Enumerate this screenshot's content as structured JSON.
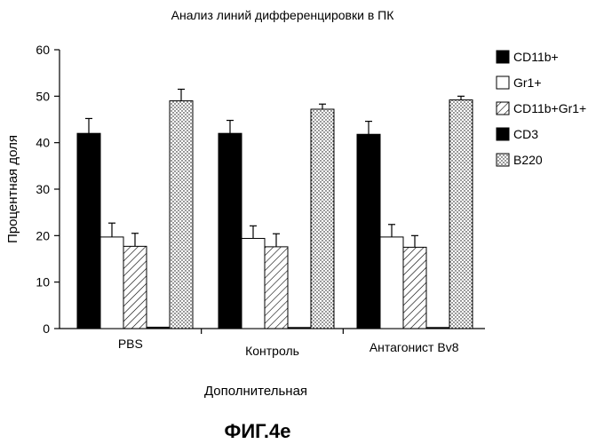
{
  "chart_data": {
    "type": "bar",
    "title": "Анализ линий дифференцировки в ПК",
    "xlabel": "Дополнительная",
    "ylabel": "Процентная доля",
    "caption": "ФИГ.4е",
    "ylim": [
      0,
      60
    ],
    "yticks": [
      0,
      10,
      20,
      30,
      40,
      50,
      60
    ],
    "categories": [
      "PBS",
      "Контроль",
      "Антагонист Bv8"
    ],
    "legend_position": "right",
    "grid": false,
    "series": [
      {
        "name": "CD11b+",
        "fill": "solid-black",
        "values": [
          42.0,
          42.0,
          41.8
        ],
        "errors": [
          3.2,
          2.8,
          2.8
        ]
      },
      {
        "name": "Gr1+",
        "fill": "white",
        "values": [
          19.7,
          19.4,
          19.7
        ],
        "errors": [
          3.0,
          2.7,
          2.7
        ]
      },
      {
        "name": "CD11b+Gr1+",
        "fill": "diagonal-hatch",
        "values": [
          17.7,
          17.6,
          17.5
        ],
        "errors": [
          2.8,
          2.8,
          2.5
        ]
      },
      {
        "name": "CD3",
        "fill": "solid-black",
        "values": [
          0.3,
          0.2,
          0.2
        ],
        "errors": [
          0,
          0,
          0
        ]
      },
      {
        "name": "B220",
        "fill": "dotted",
        "values": [
          49.0,
          47.2,
          49.2
        ],
        "errors": [
          2.5,
          1.1,
          0.8
        ]
      }
    ]
  }
}
